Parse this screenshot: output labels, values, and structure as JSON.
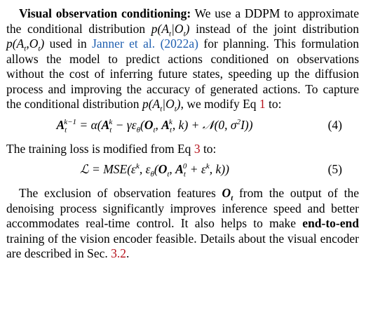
{
  "paragraph1": {
    "bold_lead": "Visual observation conditioning:",
    "text_a": " We use a DDPM to approximate the conditional distribution ",
    "math_a": "p(A",
    "math_a_close": "|O",
    "math_a_end": ")",
    "text_b": " instead of the joint distribution ",
    "math_b": "p(A",
    "math_b_mid": ",O",
    "math_b_end": ")",
    "text_c": " used in ",
    "cite_author": "Janner et al.",
    "cite_year": "(2022a)",
    "text_d": " for planning. This formulation allows the model to predict actions conditioned on observations without the cost of inferring future states, speeding up the diffusion process and improving the accuracy of generated actions. To capture the conditional distribution ",
    "math_c": "p(A",
    "math_c_close": "|O",
    "math_c_end": ")",
    "text_e": ", we modify Eq ",
    "eq_ref": "1",
    "text_f": " to:"
  },
  "equation4": {
    "body": "A_t^{k-1} = α(A_t^k − γε_θ(O_t, A_t^k, k) + N(0, σ²I))",
    "number": "(4)"
  },
  "paragraph2": {
    "text_a": "The training loss is modified from Eq ",
    "eq_ref": "3",
    "text_b": " to:"
  },
  "equation5": {
    "body": "L = MSE(ε^k, ε_θ(O_t, A_t^0 + ε^k, k))",
    "number": "(5)"
  },
  "paragraph3": {
    "text_a": "The exclusion of observation features ",
    "math_a": "O",
    "text_b": " from the output of the denoising process significantly improves inference speed and better accommodates real-time control. It also helps to make ",
    "bold": "end-to-end",
    "text_c": " training of the vision encoder feasible. Details about the visual encoder are described in Sec. ",
    "sec_ref": "3.2",
    "text_d": "."
  }
}
